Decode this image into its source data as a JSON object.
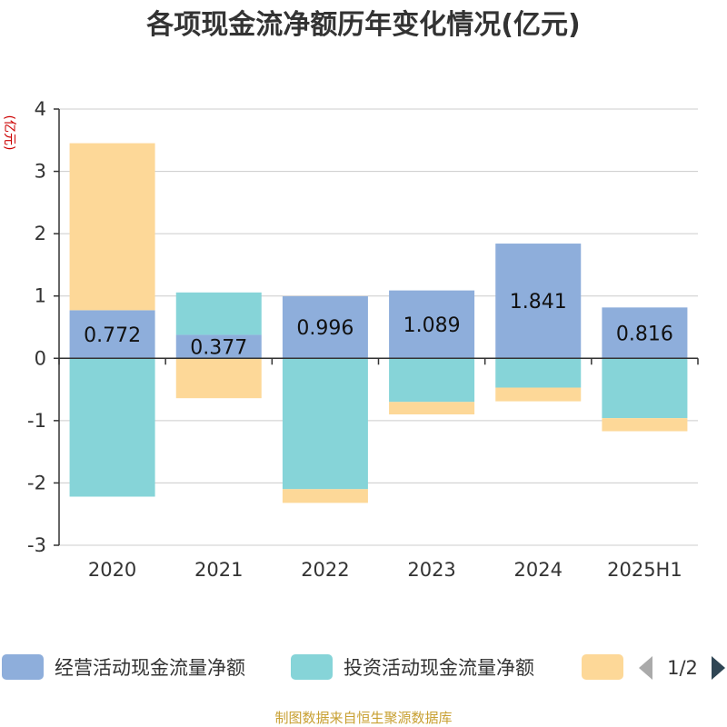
{
  "chart_data": {
    "type": "bar",
    "stacked": true,
    "title": "各项现金流净额历年变化情况(亿元)",
    "ylabel": "(亿元)",
    "categories": [
      "2020",
      "2021",
      "2022",
      "2023",
      "2024",
      "2025H1"
    ],
    "ylim": [
      -3,
      4
    ],
    "yticks": [
      4,
      3,
      2,
      1,
      0,
      -1,
      -2,
      -3
    ],
    "grid": true,
    "series": [
      {
        "name": "经营活动现金流量净额",
        "color": "#8eaedb",
        "values": [
          0.772,
          0.377,
          0.996,
          1.089,
          1.841,
          0.816
        ],
        "labels": [
          "0.772",
          "0.377",
          "0.996",
          "1.089",
          "1.841",
          "0.816"
        ]
      },
      {
        "name": "投资活动现金流量净额",
        "color": "#86d4d8",
        "values": [
          -2.22,
          0.68,
          -2.1,
          -0.7,
          -0.47,
          -0.96
        ]
      },
      {
        "name": "",
        "color": "#fdd898",
        "values": [
          2.68,
          -0.64,
          -0.22,
          -0.2,
          -0.22,
          -0.21
        ]
      }
    ],
    "legend": {
      "position": "bottom",
      "page": "1/2"
    }
  },
  "source": "制图数据来自恒生聚源数据库"
}
